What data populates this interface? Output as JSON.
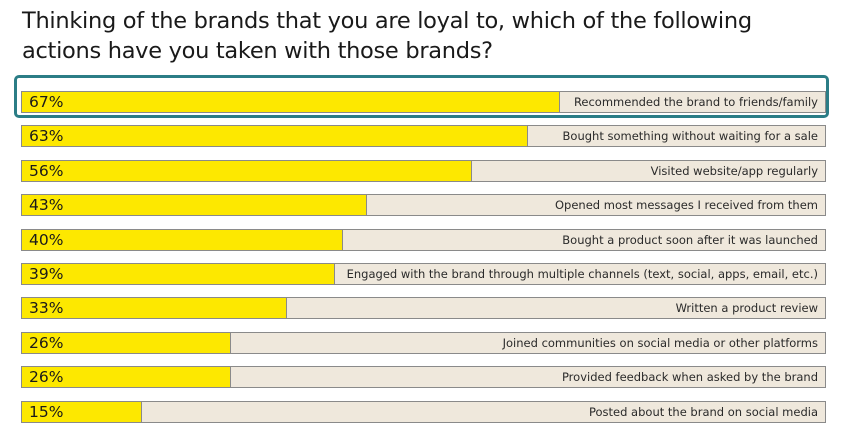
{
  "chart_data": {
    "type": "bar",
    "orientation": "horizontal",
    "title": "Thinking of the brands that you are loyal to, which of the following actions have you taken with those brands?",
    "categories": [
      "Recommended the brand to friends/family",
      "Bought something without waiting for a sale",
      "Visited website/app regularly",
      "Opened most messages I received from them",
      "Bought a product soon after it was launched",
      "Engaged with the brand through multiple channels (text, social, apps, email, etc.)",
      "Written a product review",
      "Joined communities on social media or other platforms",
      "Provided feedback when asked by the brand",
      "Posted about the brand on social media"
    ],
    "values": [
      67,
      63,
      56,
      43,
      40,
      39,
      33,
      26,
      26,
      15
    ],
    "value_labels": [
      "67%",
      "63%",
      "56%",
      "43%",
      "40%",
      "39%",
      "33%",
      "26%",
      "26%",
      "15%"
    ],
    "highlighted_index": 0,
    "xlim": [
      0,
      100
    ],
    "colors": {
      "bar": "#fde800",
      "track": "#efe8dc",
      "border": "#8a8a8a",
      "highlight": "#2b7d86"
    }
  }
}
